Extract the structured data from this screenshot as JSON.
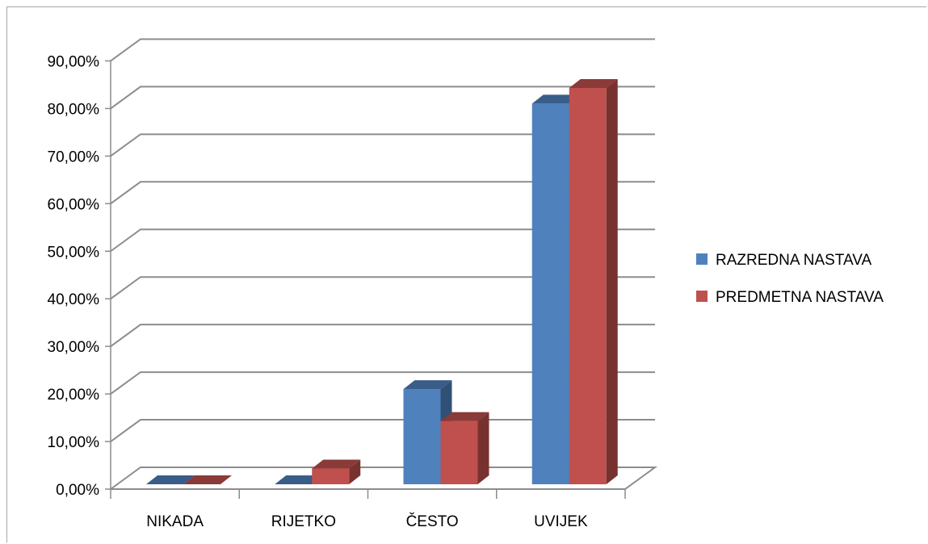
{
  "chart_data": {
    "type": "bar",
    "categories": [
      "NIKADA",
      "RIJETKO",
      "ČESTO",
      "UVIJEK"
    ],
    "series": [
      {
        "name": "RAZREDNA NASTAVA",
        "values": [
          0.0,
          0.0,
          20.0,
          80.0
        ],
        "color": "#4f81bd"
      },
      {
        "name": "PREDMETNA NASTAVA",
        "values": [
          0.0,
          3.3,
          13.3,
          83.3
        ],
        "color": "#c0504d"
      }
    ],
    "yticks": [
      "0,00%",
      "10,00%",
      "20,00%",
      "30,00%",
      "40,00%",
      "50,00%",
      "60,00%",
      "70,00%",
      "80,00%",
      "90,00%"
    ],
    "ylim": [
      0,
      90
    ],
    "grid": true,
    "legend_position": "right",
    "three_d": true
  }
}
